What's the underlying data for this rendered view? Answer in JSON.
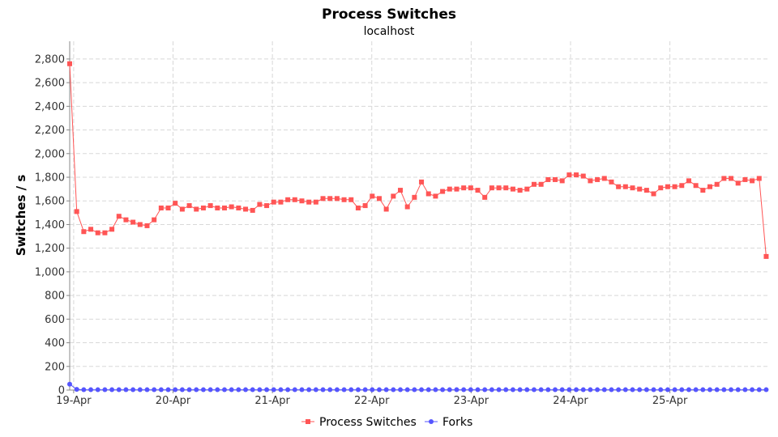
{
  "chart_data": {
    "type": "line",
    "title": "Process Switches",
    "subtitle": "localhost",
    "ylabel": "Switches / s",
    "xlabel": "",
    "ylim": [
      0,
      2950
    ],
    "yticks": [
      0,
      200,
      400,
      600,
      800,
      1000,
      1200,
      1400,
      1600,
      1800,
      2000,
      2200,
      2400,
      2600,
      2800
    ],
    "ytick_labels": [
      "0",
      "200",
      "400",
      "600",
      "800",
      "1,000",
      "1,200",
      "1,400",
      "1,600",
      "1,800",
      "2,000",
      "2,200",
      "2,400",
      "2,600",
      "2,800"
    ],
    "xlim": [
      -0.04,
      6.99
    ],
    "xticks": [
      0,
      1,
      2,
      3,
      4,
      5,
      6
    ],
    "xtick_labels": [
      "19-Apr",
      "20-Apr",
      "21-Apr",
      "22-Apr",
      "23-Apr",
      "24-Apr",
      "25-Apr"
    ],
    "grid": true,
    "legend_position": "bottom",
    "series": [
      {
        "name": "Process Switches",
        "color": "#ff5555",
        "marker": "square",
        "x0": -0.04,
        "dx": 0.0708,
        "values": [
          2760,
          1510,
          1340,
          1360,
          1330,
          1330,
          1360,
          1470,
          1440,
          1420,
          1400,
          1390,
          1440,
          1540,
          1540,
          1580,
          1530,
          1560,
          1530,
          1540,
          1560,
          1540,
          1540,
          1550,
          1540,
          1530,
          1520,
          1570,
          1560,
          1590,
          1590,
          1610,
          1610,
          1600,
          1590,
          1590,
          1620,
          1620,
          1620,
          1610,
          1610,
          1540,
          1560,
          1640,
          1620,
          1530,
          1640,
          1690,
          1550,
          1630,
          1760,
          1660,
          1640,
          1680,
          1700,
          1700,
          1710,
          1710,
          1690,
          1630,
          1710,
          1710,
          1710,
          1700,
          1690,
          1700,
          1740,
          1740,
          1780,
          1780,
          1770,
          1820,
          1820,
          1810,
          1770,
          1780,
          1790,
          1760,
          1720,
          1720,
          1710,
          1700,
          1690,
          1660,
          1710,
          1720,
          1720,
          1730,
          1770,
          1730,
          1690,
          1720,
          1740,
          1790,
          1790,
          1750,
          1780,
          1770,
          1790,
          1130
        ]
      },
      {
        "name": "Forks",
        "color": "#5555ff",
        "marker": "circle",
        "x0": -0.04,
        "dx": 0.0708,
        "values": [
          50,
          6,
          3,
          3,
          3,
          3,
          3,
          3,
          3,
          3,
          3,
          3,
          3,
          3,
          3,
          3,
          3,
          3,
          3,
          3,
          3,
          3,
          3,
          3,
          3,
          3,
          3,
          3,
          3,
          3,
          3,
          3,
          3,
          3,
          3,
          3,
          3,
          3,
          3,
          3,
          3,
          3,
          3,
          3,
          3,
          3,
          3,
          3,
          3,
          3,
          3,
          3,
          3,
          3,
          3,
          3,
          3,
          3,
          3,
          3,
          3,
          3,
          3,
          3,
          3,
          3,
          3,
          3,
          3,
          3,
          3,
          3,
          3,
          3,
          3,
          3,
          3,
          3,
          3,
          3,
          3,
          3,
          3,
          3,
          3,
          3,
          3,
          3,
          3,
          3,
          3,
          3,
          3,
          3,
          3,
          3,
          3,
          3,
          3,
          3
        ]
      }
    ]
  }
}
